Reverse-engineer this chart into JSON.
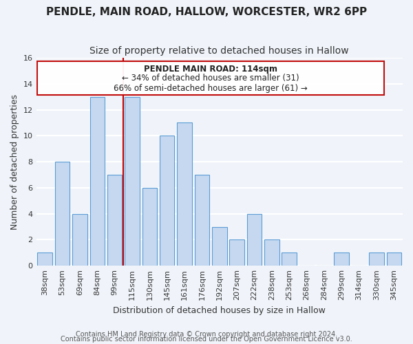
{
  "title": "PENDLE, MAIN ROAD, HALLOW, WORCESTER, WR2 6PP",
  "subtitle": "Size of property relative to detached houses in Hallow",
  "xlabel": "Distribution of detached houses by size in Hallow",
  "ylabel": "Number of detached properties",
  "categories": [
    "38sqm",
    "53sqm",
    "69sqm",
    "84sqm",
    "99sqm",
    "115sqm",
    "130sqm",
    "145sqm",
    "161sqm",
    "176sqm",
    "192sqm",
    "207sqm",
    "222sqm",
    "238sqm",
    "253sqm",
    "268sqm",
    "284sqm",
    "299sqm",
    "314sqm",
    "330sqm",
    "345sqm"
  ],
  "values": [
    1,
    8,
    4,
    13,
    7,
    13,
    6,
    10,
    11,
    7,
    3,
    2,
    4,
    2,
    1,
    0,
    0,
    1,
    0,
    1,
    1
  ],
  "bar_color": "#c5d8f0",
  "bar_edge_color": "#5b9bd5",
  "highlight_index": 5,
  "highlight_color": "#c00000",
  "ylim": [
    0,
    16
  ],
  "yticks": [
    0,
    2,
    4,
    6,
    8,
    10,
    12,
    14,
    16
  ],
  "annotation_title": "PENDLE MAIN ROAD: 114sqm",
  "annotation_line1": "← 34% of detached houses are smaller (31)",
  "annotation_line2": "66% of semi-detached houses are larger (61) →",
  "footer1": "Contains HM Land Registry data © Crown copyright and database right 2024.",
  "footer2": "Contains public sector information licensed under the Open Government Licence v3.0.",
  "background_color": "#f0f4fa",
  "grid_color": "#d0d8e8",
  "title_fontsize": 11,
  "subtitle_fontsize": 10,
  "axis_label_fontsize": 9,
  "tick_fontsize": 8,
  "annotation_fontsize": 8.5,
  "footer_fontsize": 7
}
